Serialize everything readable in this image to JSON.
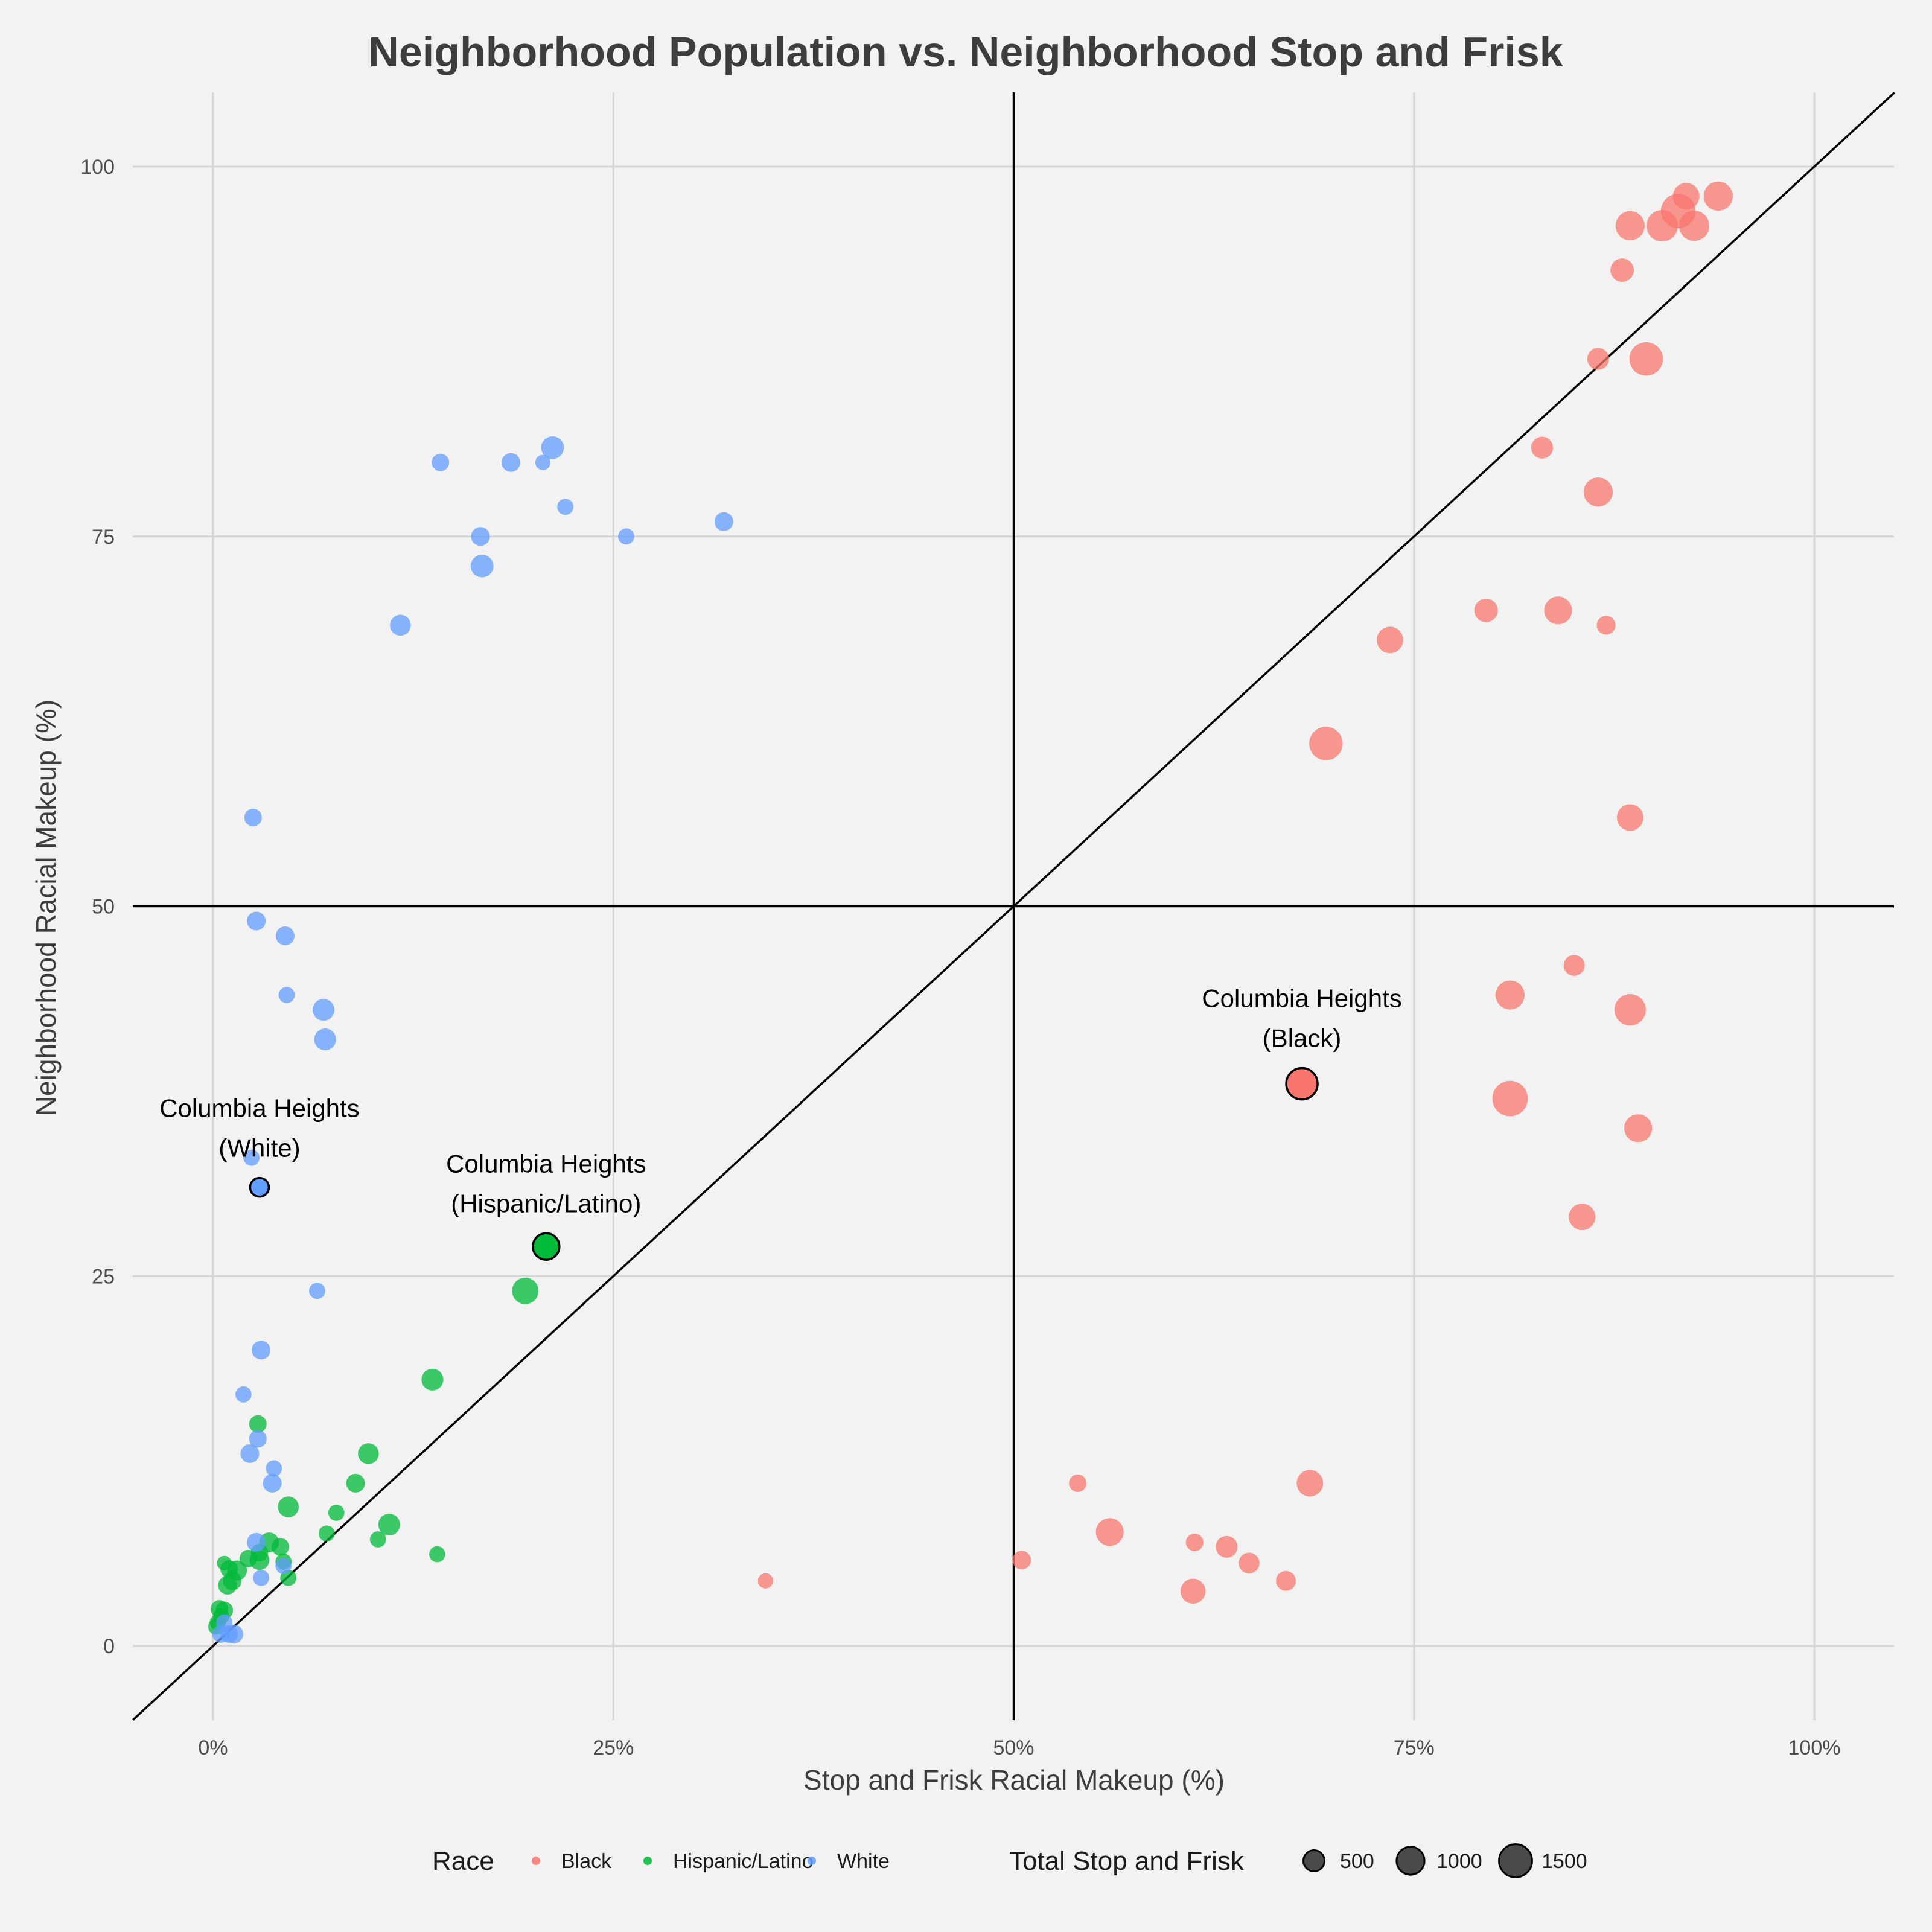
{
  "chart_data": {
    "type": "scatter",
    "title": "Neighborhood Population vs. Neighborhood Stop and Frisk",
    "xlabel": "Stop and Frisk Racial Makeup (%)",
    "ylabel": "Neighborhood Racial Makeup (%)",
    "xlim": [
      -5,
      105
    ],
    "ylim": [
      -5,
      105
    ],
    "x_ticks": [
      0,
      25,
      50,
      75,
      100
    ],
    "x_tick_labels": [
      "0%",
      "25%",
      "50%",
      "75%",
      "100%"
    ],
    "y_ticks": [
      0,
      25,
      50,
      75,
      100
    ],
    "y_tick_labels": [
      "0",
      "25",
      "50",
      "75",
      "100"
    ],
    "reference_lines": {
      "vertical_x": 50,
      "horizontal_y": 50,
      "diagonal": "y = x"
    },
    "legend": {
      "race_title": "Race",
      "race_entries": [
        "Black",
        "Hispanic/Latino",
        "White"
      ],
      "size_title": "Total Stop and Frisk",
      "size_entries": [
        500,
        1000,
        1500
      ],
      "size_labels": [
        "500",
        "1000",
        "1500"
      ],
      "placement": "bottom"
    },
    "colors": {
      "Black": "#f8766d",
      "Hispanic/Latino": "#00ba38",
      "White": "#619cff"
    },
    "series": [
      {
        "name": "Black",
        "points": [
          {
            "x": 94,
            "y": 98,
            "n": 900
          },
          {
            "x": 92,
            "y": 98,
            "n": 700
          },
          {
            "x": 91.5,
            "y": 97,
            "n": 1400
          },
          {
            "x": 90.5,
            "y": 96,
            "n": 1100
          },
          {
            "x": 92.5,
            "y": 96,
            "n": 1000
          },
          {
            "x": 88.5,
            "y": 96,
            "n": 900
          },
          {
            "x": 88,
            "y": 93,
            "n": 500
          },
          {
            "x": 86.5,
            "y": 87,
            "n": 400
          },
          {
            "x": 89.5,
            "y": 87,
            "n": 1300
          },
          {
            "x": 83,
            "y": 81,
            "n": 400
          },
          {
            "x": 86.5,
            "y": 78,
            "n": 900
          },
          {
            "x": 79.5,
            "y": 70,
            "n": 500
          },
          {
            "x": 84,
            "y": 70,
            "n": 800
          },
          {
            "x": 87,
            "y": 69,
            "n": 250
          },
          {
            "x": 73.5,
            "y": 68,
            "n": 700
          },
          {
            "x": 69.5,
            "y": 61,
            "n": 1300
          },
          {
            "x": 88.5,
            "y": 56,
            "n": 700
          },
          {
            "x": 85,
            "y": 46,
            "n": 350
          },
          {
            "x": 81,
            "y": 44,
            "n": 900
          },
          {
            "x": 88.5,
            "y": 43,
            "n": 1100
          },
          {
            "x": 68,
            "y": 38,
            "n": 1100
          },
          {
            "x": 81,
            "y": 37,
            "n": 1500
          },
          {
            "x": 89,
            "y": 35,
            "n": 800
          },
          {
            "x": 85.5,
            "y": 29,
            "n": 700
          },
          {
            "x": 68.5,
            "y": 11,
            "n": 700
          },
          {
            "x": 54,
            "y": 11,
            "n": 200
          },
          {
            "x": 56,
            "y": 7.7,
            "n": 800
          },
          {
            "x": 61.3,
            "y": 7,
            "n": 200
          },
          {
            "x": 63.3,
            "y": 6.7,
            "n": 400
          },
          {
            "x": 50.5,
            "y": 5.8,
            "n": 250
          },
          {
            "x": 64.7,
            "y": 5.6,
            "n": 350
          },
          {
            "x": 67,
            "y": 4.4,
            "n": 300
          },
          {
            "x": 34.5,
            "y": 4.4,
            "n": 120
          },
          {
            "x": 61.2,
            "y": 3.7,
            "n": 600
          }
        ]
      },
      {
        "name": "Hispanic/Latino",
        "points": [
          {
            "x": 20.8,
            "y": 27,
            "n": 700
          },
          {
            "x": 19.5,
            "y": 24,
            "n": 700
          },
          {
            "x": 13.7,
            "y": 18,
            "n": 400
          },
          {
            "x": 9.7,
            "y": 13,
            "n": 350
          },
          {
            "x": 8.9,
            "y": 11,
            "n": 250
          },
          {
            "x": 11,
            "y": 8.2,
            "n": 400
          },
          {
            "x": 7.7,
            "y": 9,
            "n": 150
          },
          {
            "x": 4.7,
            "y": 9.4,
            "n": 350
          },
          {
            "x": 7.1,
            "y": 7.6,
            "n": 150
          },
          {
            "x": 10.3,
            "y": 7.2,
            "n": 150
          },
          {
            "x": 14,
            "y": 6.2,
            "n": 150
          },
          {
            "x": 2.8,
            "y": 15,
            "n": 200
          },
          {
            "x": 3.5,
            "y": 7,
            "n": 300
          },
          {
            "x": 4.2,
            "y": 6.7,
            "n": 200
          },
          {
            "x": 2.9,
            "y": 6.3,
            "n": 200
          },
          {
            "x": 2.9,
            "y": 5.8,
            "n": 300
          },
          {
            "x": 2.2,
            "y": 5.9,
            "n": 200
          },
          {
            "x": 4.4,
            "y": 5.7,
            "n": 150
          },
          {
            "x": 0.7,
            "y": 5.6,
            "n": 100
          },
          {
            "x": 1,
            "y": 5.2,
            "n": 200
          },
          {
            "x": 1.5,
            "y": 5.1,
            "n": 300
          },
          {
            "x": 4.7,
            "y": 4.6,
            "n": 150
          },
          {
            "x": 1.2,
            "y": 4.4,
            "n": 250
          },
          {
            "x": 0.9,
            "y": 4.1,
            "n": 250
          },
          {
            "x": 0.4,
            "y": 2.5,
            "n": 200
          },
          {
            "x": 0.7,
            "y": 2.4,
            "n": 200
          },
          {
            "x": 0.5,
            "y": 2,
            "n": 150
          },
          {
            "x": 0.3,
            "y": 1.6,
            "n": 150
          },
          {
            "x": 0.2,
            "y": 1.3,
            "n": 150
          }
        ]
      },
      {
        "name": "White",
        "points": [
          {
            "x": 21.2,
            "y": 81,
            "n": 450
          },
          {
            "x": 14.2,
            "y": 80,
            "n": 200
          },
          {
            "x": 18.6,
            "y": 80,
            "n": 250
          },
          {
            "x": 20.6,
            "y": 80,
            "n": 120
          },
          {
            "x": 22,
            "y": 77,
            "n": 150
          },
          {
            "x": 31.9,
            "y": 76,
            "n": 250
          },
          {
            "x": 16.7,
            "y": 75,
            "n": 250
          },
          {
            "x": 25.8,
            "y": 75,
            "n": 150
          },
          {
            "x": 16.8,
            "y": 73,
            "n": 450
          },
          {
            "x": 11.7,
            "y": 69,
            "n": 350
          },
          {
            "x": 2.5,
            "y": 56,
            "n": 200
          },
          {
            "x": 2.7,
            "y": 49,
            "n": 250
          },
          {
            "x": 4.5,
            "y": 48,
            "n": 250
          },
          {
            "x": 4.6,
            "y": 44,
            "n": 150
          },
          {
            "x": 6.9,
            "y": 43,
            "n": 400
          },
          {
            "x": 7,
            "y": 41,
            "n": 400
          },
          {
            "x": 2.4,
            "y": 33,
            "n": 150
          },
          {
            "x": 2.9,
            "y": 31,
            "n": 250
          },
          {
            "x": 6.5,
            "y": 24,
            "n": 150
          },
          {
            "x": 3,
            "y": 20,
            "n": 250
          },
          {
            "x": 1.9,
            "y": 17,
            "n": 150
          },
          {
            "x": 2.8,
            "y": 14,
            "n": 200
          },
          {
            "x": 2.3,
            "y": 13,
            "n": 250
          },
          {
            "x": 3.8,
            "y": 12,
            "n": 150
          },
          {
            "x": 3.7,
            "y": 11,
            "n": 250
          },
          {
            "x": 2.7,
            "y": 7,
            "n": 250
          },
          {
            "x": 3,
            "y": 4.6,
            "n": 150
          },
          {
            "x": 4.4,
            "y": 5.4,
            "n": 150
          },
          {
            "x": 0.5,
            "y": 0.8,
            "n": 200
          },
          {
            "x": 1,
            "y": 0.8,
            "n": 200
          },
          {
            "x": 1.3,
            "y": 0.8,
            "n": 250
          },
          {
            "x": 0.7,
            "y": 1.6,
            "n": 150
          }
        ]
      }
    ],
    "highlighted": [
      {
        "race": "Black",
        "x": 68,
        "y": 38,
        "n": 1100,
        "label_line1": "Columbia Heights",
        "label_line2": "(Black)"
      },
      {
        "race": "Hispanic/Latino",
        "x": 20.8,
        "y": 27,
        "n": 700,
        "label_line1": "Columbia Heights",
        "label_line2": "(Hispanic/Latino)"
      },
      {
        "race": "White",
        "x": 2.9,
        "y": 31,
        "n": 250,
        "label_line1": "Columbia Heights",
        "label_line2": "(White)"
      }
    ]
  }
}
